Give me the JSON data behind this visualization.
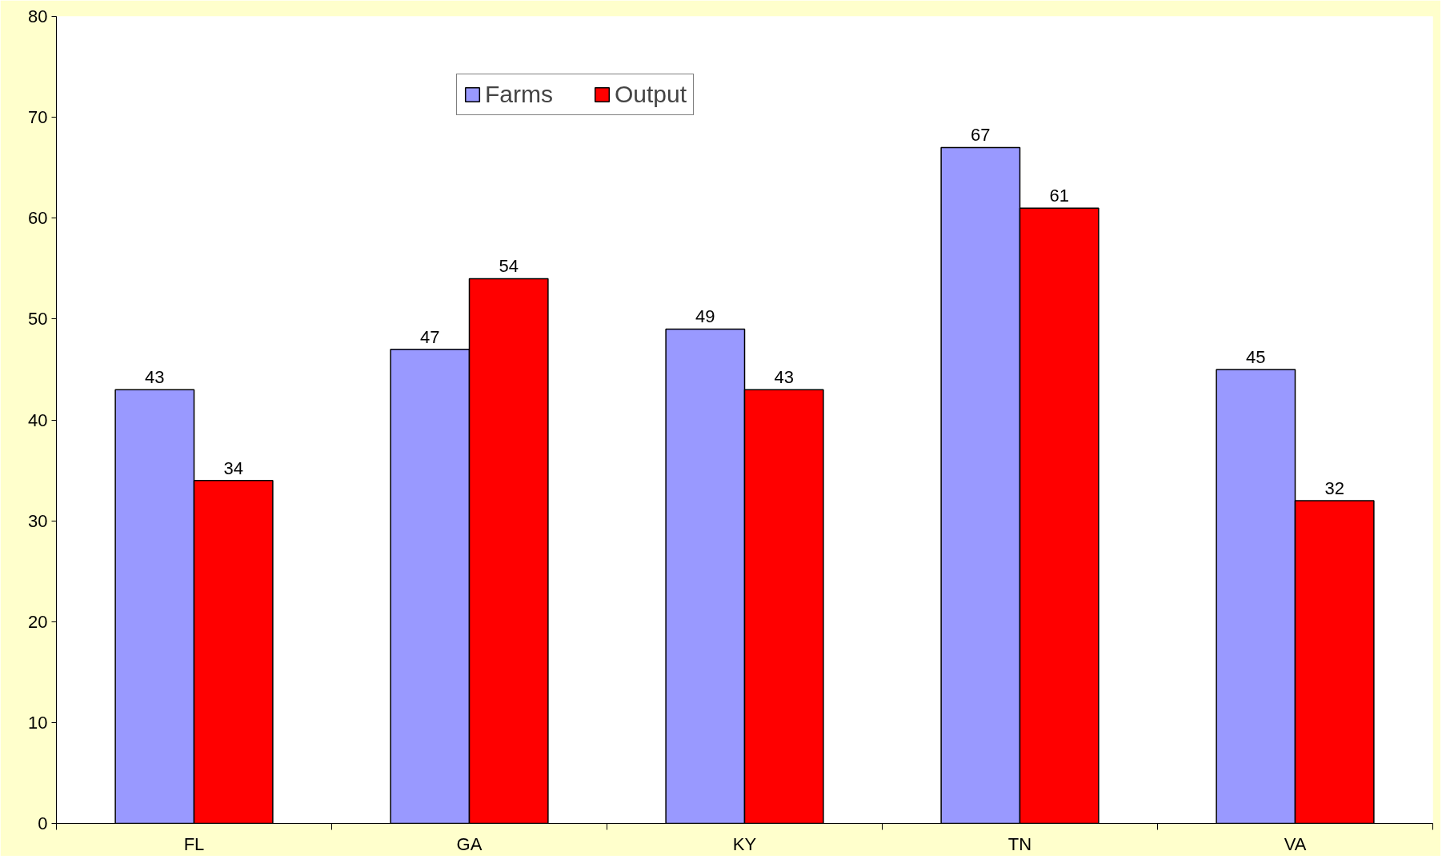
{
  "chart_data": {
    "type": "bar",
    "categories": [
      "FL",
      "GA",
      "KY",
      "TN",
      "VA"
    ],
    "series": [
      {
        "name": "Farms",
        "color": "#9999ff",
        "values": [
          43,
          47,
          49,
          67,
          45
        ]
      },
      {
        "name": "Output",
        "color": "#ff0000",
        "values": [
          34,
          54,
          43,
          61,
          32
        ]
      }
    ],
    "ylim": [
      0,
      80
    ],
    "yticks": [
      0,
      10,
      20,
      30,
      40,
      50,
      60,
      70,
      80
    ],
    "grid": false,
    "legend": "top",
    "data_labels": true
  }
}
